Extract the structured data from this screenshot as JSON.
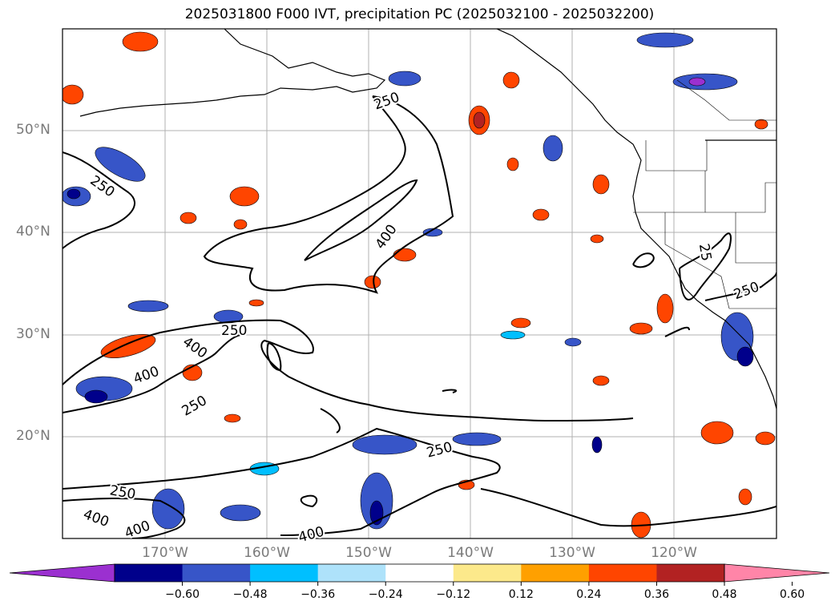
{
  "title": "2025031800 F000 IVT, precipitation PC (2025032100 - 2025032200)",
  "map": {
    "lat_labels": [
      "50°N",
      "40°N",
      "30°N",
      "20°N"
    ],
    "lon_labels": [
      "170°W",
      "160°W",
      "150°W",
      "140°W",
      "130°W",
      "120°W"
    ],
    "contour_labels": [
      {
        "text": "250",
        "rot": 20
      },
      {
        "text": "250",
        "rot": 35
      },
      {
        "text": "400",
        "rot": -55
      },
      {
        "text": "250",
        "rot": 0
      },
      {
        "text": "400",
        "rot": 35
      },
      {
        "text": "400",
        "rot": -20
      },
      {
        "text": "250",
        "rot": -30
      },
      {
        "text": "250",
        "rot": -15
      },
      {
        "text": "250",
        "rot": 10
      },
      {
        "text": "400",
        "rot": 20
      },
      {
        "text": "400",
        "rot": -20
      },
      {
        "text": "400",
        "rot": -15
      },
      {
        "text": "250",
        "rot": -20
      },
      {
        "text": "25",
        "rot": 80
      }
    ]
  },
  "colorbar": {
    "colors": [
      "#9b30d0",
      "#00008b",
      "#3755c8",
      "#00bfff",
      "#aee2fa",
      "#ffffff",
      "#fce98b",
      "#ffa000",
      "#ff4500",
      "#b22222",
      "#ff85a8"
    ],
    "tick_labels": [
      "−0.60",
      "−0.48",
      "−0.36",
      "−0.24",
      "−0.12",
      "0.12",
      "0.24",
      "0.36",
      "0.48",
      "0.60"
    ]
  }
}
